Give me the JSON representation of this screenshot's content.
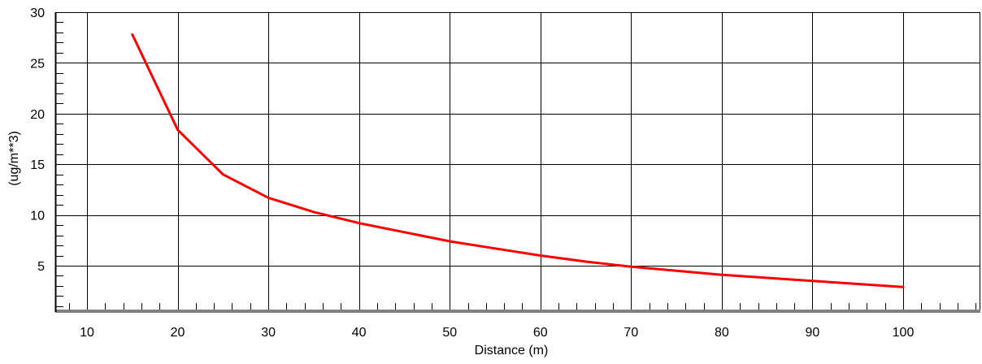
{
  "chart_data": {
    "type": "line",
    "title": "",
    "xlabel": "Distance (m)",
    "ylabel": "(ug/m**3)",
    "xlim": [
      5,
      109
    ],
    "ylim": [
      1,
      30
    ],
    "x_ticks": [
      10,
      20,
      30,
      40,
      50,
      60,
      70,
      80,
      90,
      100
    ],
    "y_ticks": [
      5,
      10,
      15,
      20,
      25,
      30
    ],
    "x_tick_labels": [
      "10",
      "20",
      "30",
      "40",
      "50",
      "60",
      "70",
      "80",
      "90",
      "100"
    ],
    "y_tick_labels": [
      "5",
      "10",
      "15",
      "20",
      "25",
      "30"
    ],
    "grid": true,
    "series": [
      {
        "color": "#ff0000",
        "x": [
          15,
          20,
          25,
          30,
          35,
          40,
          45,
          50,
          55,
          60,
          65,
          70,
          75,
          80,
          85,
          90,
          95,
          100
        ],
        "y": [
          27.8,
          18.4,
          14.0,
          11.7,
          10.3,
          9.2,
          8.3,
          7.4,
          6.7,
          6.0,
          5.4,
          4.9,
          4.5,
          4.1,
          3.8,
          3.5,
          3.2,
          2.9
        ]
      }
    ]
  }
}
